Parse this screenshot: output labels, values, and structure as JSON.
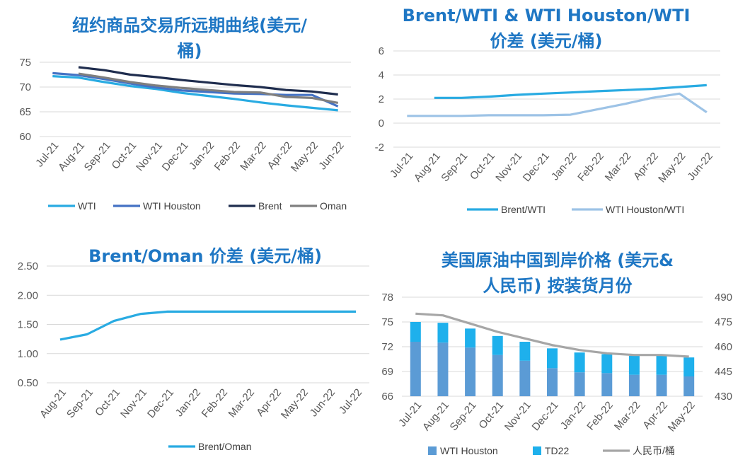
{
  "chart_data": [
    {
      "id": "c1",
      "type": "line",
      "title": [
        "纽约商品交易所远期曲线(美元/",
        "桶)"
      ],
      "categories": [
        "Jul-21",
        "Aug-21",
        "Sep-21",
        "Oct-21",
        "Nov-21",
        "Dec-21",
        "Jan-22",
        "Feb-22",
        "Mar-22",
        "Apr-22",
        "May-22",
        "Jun-22"
      ],
      "yticks": [
        60,
        65,
        70,
        75
      ],
      "ylim": [
        60,
        75
      ],
      "grid": true,
      "legend_position": "bottom",
      "series": [
        {
          "name": "WTI",
          "color": "#29abe2",
          "values": [
            72.2,
            71.9,
            71.0,
            70.2,
            69.6,
            68.8,
            68.2,
            67.6,
            66.9,
            66.3,
            65.8,
            65.3
          ]
        },
        {
          "name": "WTI Houston",
          "color": "#4472c4",
          "values": [
            72.8,
            72.4,
            71.6,
            70.7,
            69.9,
            69.3,
            69.0,
            68.7,
            68.6,
            68.4,
            68.4,
            66.1
          ]
        },
        {
          "name": "Brent",
          "color": "#1f2d4e",
          "values": [
            null,
            74.0,
            73.4,
            72.5,
            72.0,
            71.4,
            70.9,
            70.4,
            70.0,
            69.4,
            69.1,
            68.5
          ]
        },
        {
          "name": "Oman",
          "color": "#7f7f7f",
          "values": [
            null,
            72.7,
            71.9,
            71.0,
            70.3,
            69.8,
            69.4,
            69.0,
            68.9,
            68.0,
            67.8,
            66.8
          ]
        }
      ]
    },
    {
      "id": "c2",
      "type": "line",
      "title": [
        "Brent/WTI & WTI Houston/WTI",
        "价差 (美元/桶)"
      ],
      "categories": [
        "Jul-21",
        "Aug-21",
        "Sep-21",
        "Oct-21",
        "Nov-21",
        "Dec-21",
        "Jan-22",
        "Feb-22",
        "Mar-22",
        "Apr-22",
        "May-22",
        "Jun-22"
      ],
      "yticks": [
        -2,
        0,
        2,
        4,
        6
      ],
      "ylim": [
        -2,
        6
      ],
      "grid": true,
      "legend_position": "bottom",
      "series": [
        {
          "name": "Brent/WTI",
          "color": "#29abe2",
          "values": [
            null,
            2.1,
            2.1,
            2.2,
            2.35,
            2.45,
            2.55,
            2.65,
            2.75,
            2.85,
            3.0,
            3.15
          ]
        },
        {
          "name": "WTI Houston/WTI",
          "color": "#9dc3e6",
          "values": [
            0.6,
            0.6,
            0.6,
            0.65,
            0.65,
            0.65,
            0.7,
            1.15,
            1.6,
            2.1,
            2.45,
            0.9
          ]
        }
      ]
    },
    {
      "id": "c3",
      "type": "line",
      "title": [
        "Brent/Oman 价差 (美元/桶)"
      ],
      "categories": [
        "Aug-21",
        "Sep-21",
        "Oct-21",
        "Nov-21",
        "Dec-21",
        "Jan-22",
        "Feb-22",
        "Mar-22",
        "Apr-22",
        "May-22",
        "Jun-22",
        "Jul-22"
      ],
      "yticks": [
        "0.50",
        "1.00",
        "1.50",
        "2.00",
        "2.50"
      ],
      "ylim": [
        0.5,
        2.5
      ],
      "grid": true,
      "legend_position": "bottom",
      "series": [
        {
          "name": "Brent/Oman",
          "color": "#29abe2",
          "values": [
            1.24,
            1.33,
            1.56,
            1.68,
            1.72,
            1.72,
            1.72,
            1.72,
            1.72,
            1.72,
            1.72,
            1.72
          ]
        }
      ]
    },
    {
      "id": "c4",
      "type": "bar",
      "title": [
        "美国原油中国到岸价格 (美元&",
        "人民币) 按装货月份"
      ],
      "categories": [
        "Jul-21",
        "Aug-21",
        "Sep-21",
        "Oct-21",
        "Nov-21",
        "Dec-21",
        "Jan-22",
        "Feb-22",
        "Mar-22",
        "Apr-22",
        "May-22"
      ],
      "yticks_left": [
        66,
        69,
        72,
        75,
        78
      ],
      "ylim_left": [
        66,
        78
      ],
      "yticks_right": [
        430,
        445,
        460,
        475,
        490
      ],
      "ylim_right": [
        430,
        490
      ],
      "grid": true,
      "legend_position": "bottom",
      "series": [
        {
          "name": "WTI Houston",
          "color": "#5b9bd5",
          "axis": "left",
          "values": [
            72.6,
            72.5,
            71.9,
            71.0,
            70.3,
            69.4,
            68.9,
            68.8,
            68.6,
            68.6,
            68.4
          ]
        },
        {
          "name": "TD22",
          "color": "#1eb0ec",
          "axis": "left",
          "values": [
            2.4,
            2.4,
            2.3,
            2.3,
            2.3,
            2.4,
            2.4,
            2.3,
            2.3,
            2.3,
            2.3
          ]
        },
        {
          "name": "人民币/桶",
          "color": "#a6a6a6",
          "axis": "right",
          "values": [
            480,
            479,
            474,
            469,
            465,
            461,
            458,
            456,
            455,
            455,
            454
          ]
        }
      ]
    }
  ]
}
